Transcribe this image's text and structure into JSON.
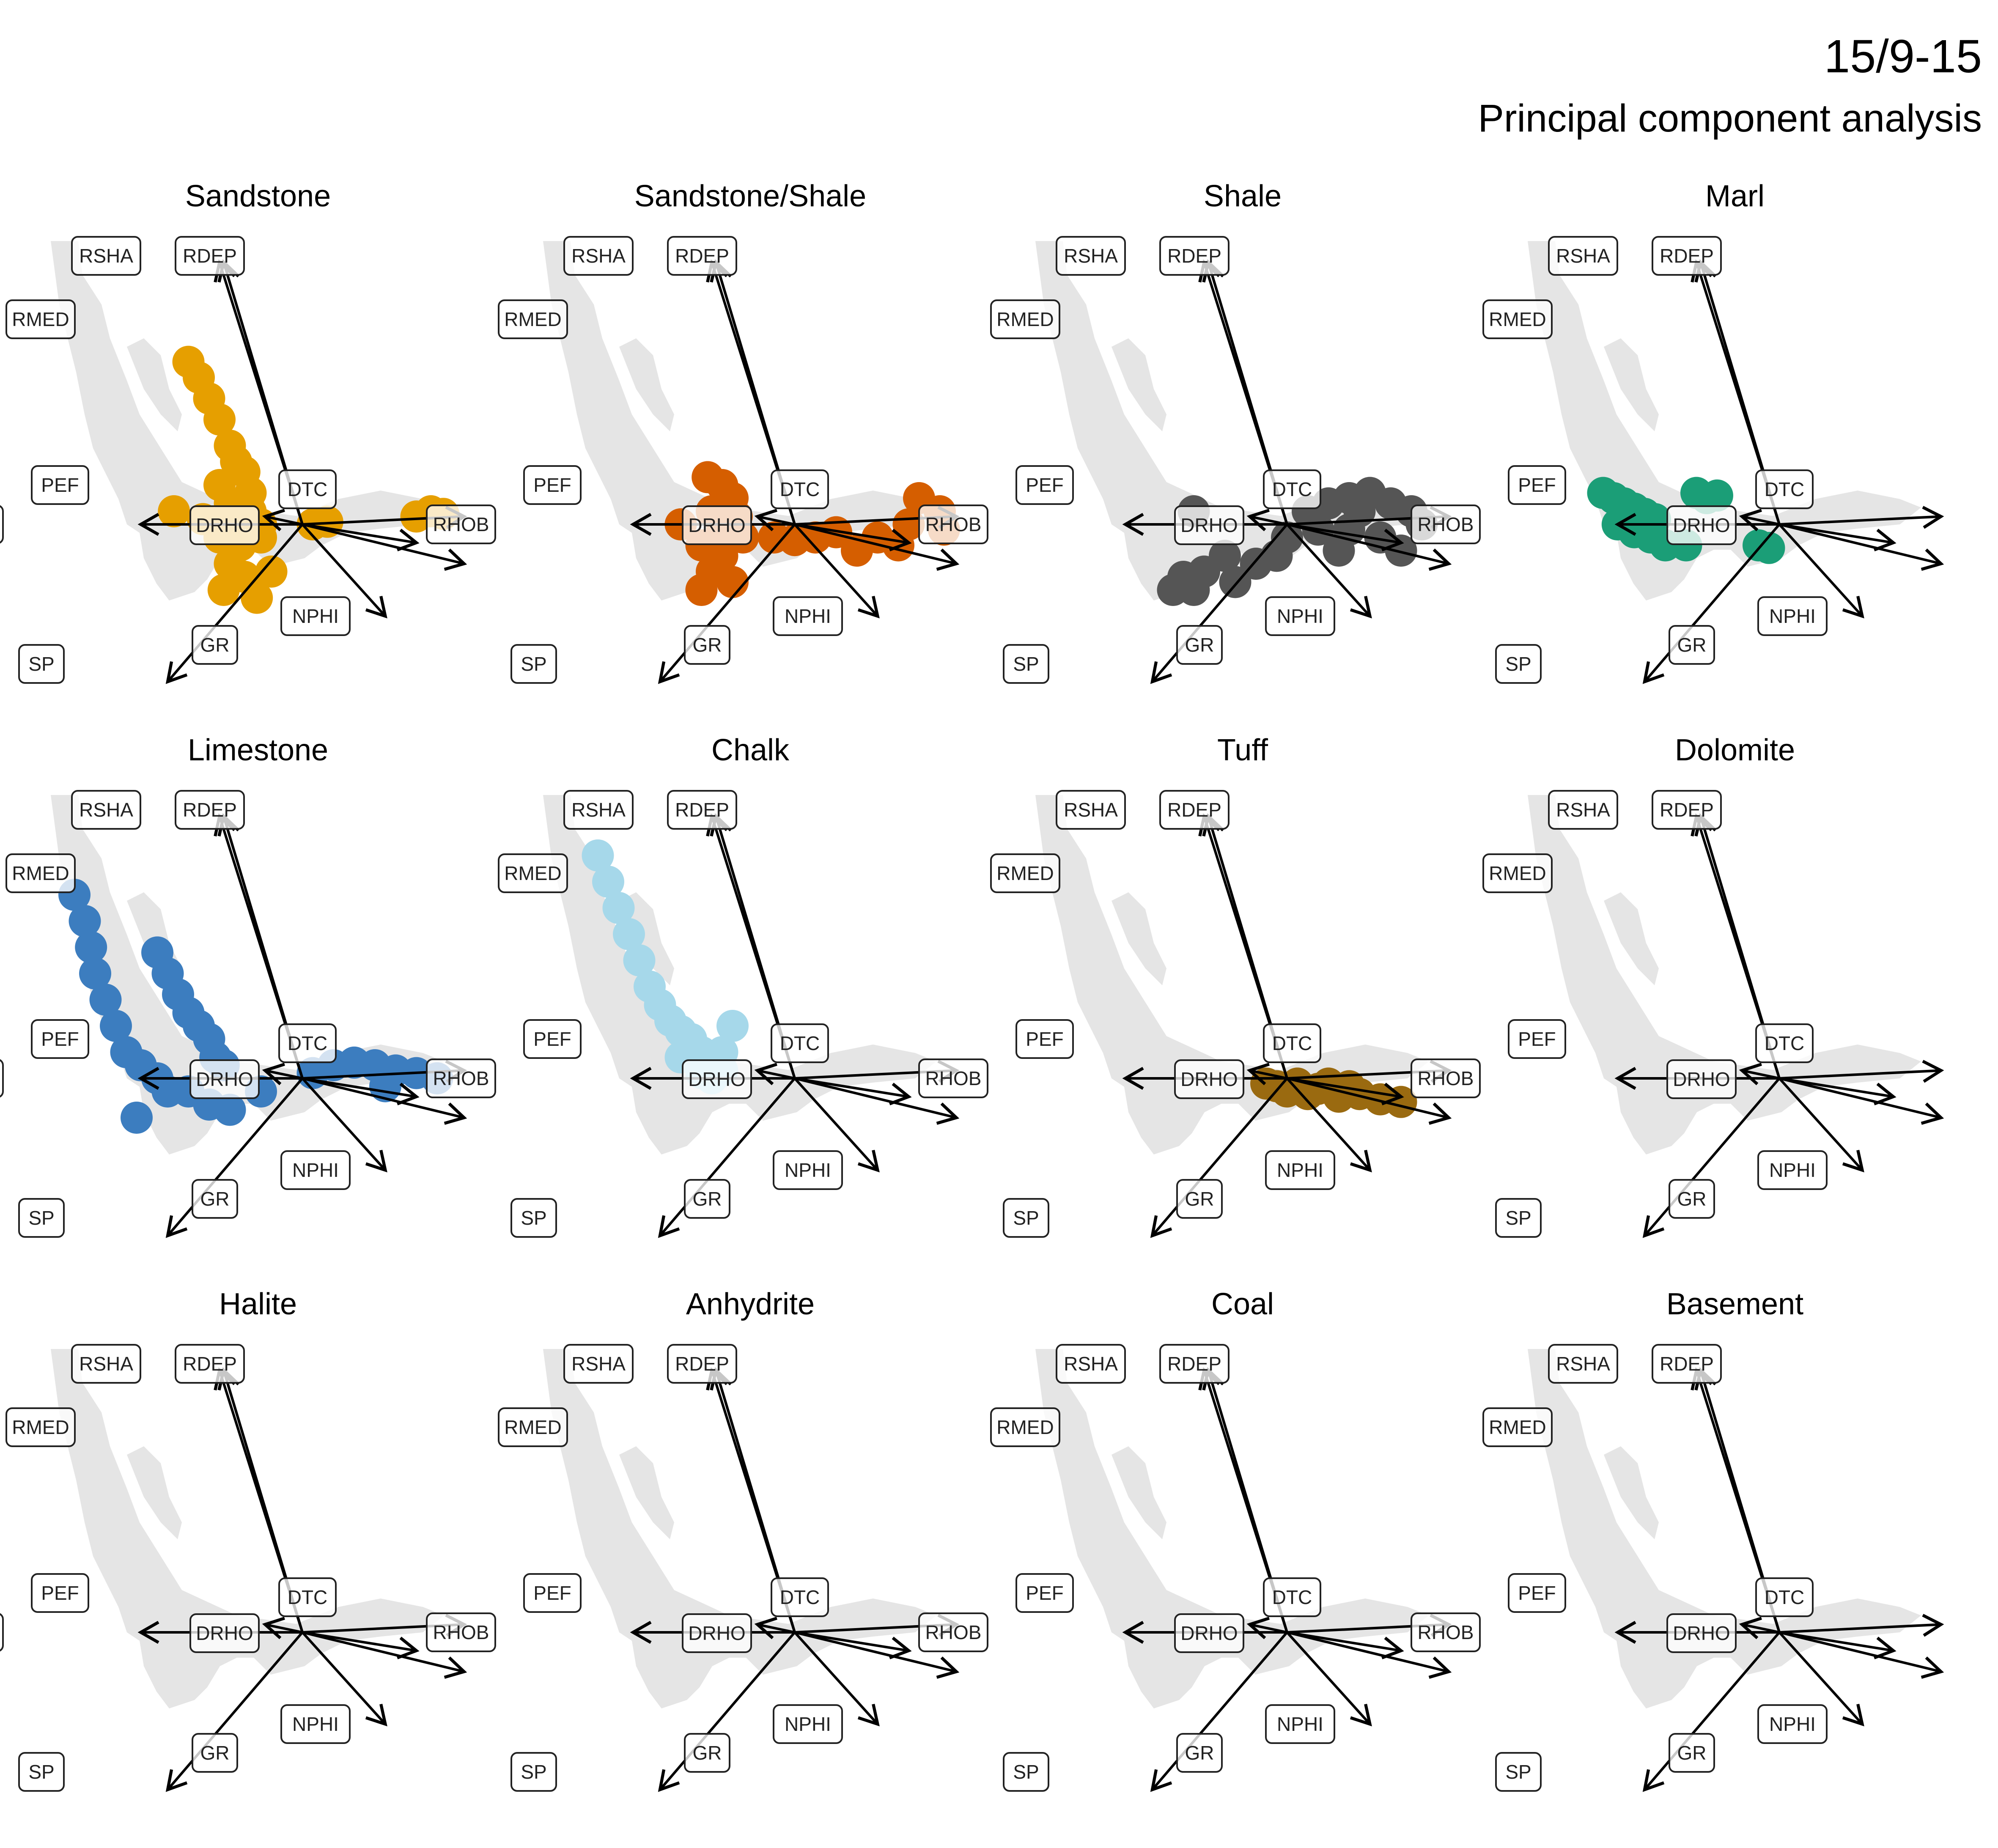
{
  "well": "15/9-15",
  "title": "Principal component analysis",
  "colors": {
    "background_density": "#e5e5e5",
    "arrow": "#000000",
    "label_fill": "#ffffff"
  },
  "chart_data": {
    "type": "scatter",
    "panel_order": [
      "Sandstone",
      "Sandstone/Shale",
      "Shale",
      "Marl",
      "Limestone",
      "Chalk",
      "Tuff",
      "Dolomite",
      "Halite",
      "Anhydrite",
      "Coal",
      "Basement"
    ],
    "loading_labels": [
      "RSHA",
      "RDEP",
      "RMED",
      "PEF",
      "DTC",
      "RHOB",
      "DRHO",
      "NPHI",
      "GR",
      "SP"
    ],
    "loadings": [
      {
        "name": "RSHA",
        "x": -0.38,
        "y": 1.0
      },
      {
        "name": "RDEP",
        "x": -0.4,
        "y": 1.0
      },
      {
        "name": "RMED",
        "x": -0.38,
        "y": 1.0
      },
      {
        "name": "PEF",
        "x": -0.18,
        "y": 0.03
      },
      {
        "name": "DTC",
        "x": 0.78,
        "y": 0.03
      },
      {
        "name": "RHOB",
        "x": -0.78,
        "y": 0.0
      },
      {
        "name": "DRHO",
        "x": 0.55,
        "y": -0.07
      },
      {
        "name": "NPHI",
        "x": 0.78,
        "y": -0.15
      },
      {
        "name": "GR",
        "x": 0.4,
        "y": -0.35
      },
      {
        "name": "SP",
        "x": -0.65,
        "y": -0.6
      }
    ],
    "panels": [
      {
        "lithology": "Sandstone",
        "color": "#E69F00",
        "points": [
          [
            -0.55,
            0.62
          ],
          [
            -0.5,
            0.56
          ],
          [
            -0.45,
            0.48
          ],
          [
            -0.4,
            0.4
          ],
          [
            -0.35,
            0.3
          ],
          [
            -0.32,
            0.24
          ],
          [
            -0.28,
            0.2
          ],
          [
            -0.4,
            0.15
          ],
          [
            -0.25,
            0.12
          ],
          [
            -0.35,
            0.08
          ],
          [
            -0.25,
            0.05
          ],
          [
            -0.48,
            0.02
          ],
          [
            -0.35,
            0.0
          ],
          [
            -0.2,
            0.0
          ],
          [
            -0.4,
            -0.05
          ],
          [
            -0.3,
            -0.08
          ],
          [
            -0.2,
            -0.05
          ],
          [
            -0.35,
            -0.15
          ],
          [
            -0.28,
            -0.2
          ],
          [
            -0.38,
            -0.25
          ],
          [
            -0.22,
            -0.28
          ],
          [
            -0.15,
            -0.18
          ],
          [
            0.05,
            0.0
          ],
          [
            0.12,
            0.01
          ],
          [
            0.55,
            0.03
          ],
          [
            0.62,
            0.05
          ],
          [
            0.68,
            0.04
          ],
          [
            -0.62,
            0.05
          ]
        ]
      },
      {
        "lithology": "Sandstone/Shale",
        "color": "#D55E00",
        "points": [
          [
            -0.42,
            0.18
          ],
          [
            -0.35,
            0.15
          ],
          [
            -0.3,
            0.1
          ],
          [
            -0.4,
            0.05
          ],
          [
            -0.28,
            0.03
          ],
          [
            -0.55,
            0.0
          ],
          [
            -0.35,
            -0.02
          ],
          [
            -0.25,
            -0.05
          ],
          [
            -0.45,
            -0.08
          ],
          [
            -0.35,
            -0.12
          ],
          [
            -0.4,
            -0.18
          ],
          [
            -0.3,
            -0.22
          ],
          [
            -0.45,
            -0.25
          ],
          [
            -0.1,
            -0.05
          ],
          [
            0.0,
            -0.06
          ],
          [
            0.1,
            -0.05
          ],
          [
            0.2,
            -0.03
          ],
          [
            0.4,
            -0.05
          ],
          [
            0.5,
            -0.08
          ],
          [
            0.6,
            0.1
          ],
          [
            0.7,
            0.05
          ],
          [
            0.72,
            -0.02
          ],
          [
            0.55,
            0.0
          ],
          [
            0.3,
            -0.1
          ]
        ]
      },
      {
        "lithology": "Shale",
        "color": "#555555",
        "points": [
          [
            0.1,
            0.05
          ],
          [
            0.2,
            0.08
          ],
          [
            0.3,
            0.1
          ],
          [
            0.4,
            0.12
          ],
          [
            0.5,
            0.08
          ],
          [
            0.6,
            0.05
          ],
          [
            0.15,
            -0.02
          ],
          [
            0.3,
            -0.02
          ],
          [
            0.45,
            -0.05
          ],
          [
            0.55,
            -0.1
          ],
          [
            0.25,
            -0.1
          ],
          [
            0.0,
            -0.05
          ],
          [
            -0.05,
            -0.12
          ],
          [
            -0.15,
            -0.15
          ],
          [
            -0.3,
            -0.12
          ],
          [
            -0.4,
            -0.18
          ],
          [
            -0.25,
            -0.22
          ],
          [
            -0.5,
            -0.2
          ],
          [
            -0.55,
            -0.25
          ],
          [
            -0.45,
            -0.25
          ],
          [
            -0.45,
            0.05
          ],
          [
            0.65,
            0.0
          ],
          [
            0.35,
            0.05
          ]
        ]
      },
      {
        "lithology": "Marl",
        "color": "#1B9E77",
        "points": [
          [
            -0.85,
            0.12
          ],
          [
            -0.8,
            0.1
          ],
          [
            -0.75,
            0.08
          ],
          [
            -0.7,
            0.06
          ],
          [
            -0.65,
            0.04
          ],
          [
            -0.6,
            0.02
          ],
          [
            -0.78,
            0.0
          ],
          [
            -0.7,
            -0.03
          ],
          [
            -0.62,
            -0.05
          ],
          [
            -0.55,
            -0.08
          ],
          [
            -0.45,
            -0.08
          ],
          [
            -0.4,
            0.12
          ],
          [
            -0.35,
            0.1
          ],
          [
            -0.3,
            0.11
          ],
          [
            -0.1,
            -0.08
          ],
          [
            -0.05,
            -0.09
          ]
        ]
      },
      {
        "lithology": "Limestone",
        "color": "#3C7DBF",
        "points": [
          [
            -1.1,
            0.7
          ],
          [
            -1.05,
            0.6
          ],
          [
            -1.02,
            0.5
          ],
          [
            -1.0,
            0.4
          ],
          [
            -0.95,
            0.3
          ],
          [
            -0.9,
            0.2
          ],
          [
            -0.85,
            0.1
          ],
          [
            -0.78,
            0.05
          ],
          [
            -0.7,
            0.0
          ],
          [
            -0.65,
            -0.05
          ],
          [
            -0.55,
            -0.05
          ],
          [
            -0.45,
            -0.1
          ],
          [
            -0.7,
            0.48
          ],
          [
            -0.65,
            0.4
          ],
          [
            -0.6,
            0.32
          ],
          [
            -0.55,
            0.25
          ],
          [
            -0.5,
            0.2
          ],
          [
            -0.45,
            0.15
          ],
          [
            -0.42,
            0.08
          ],
          [
            -0.38,
            0.05
          ],
          [
            -0.35,
            -0.12
          ],
          [
            -0.2,
            -0.05
          ],
          [
            0.05,
            0.02
          ],
          [
            0.15,
            0.05
          ],
          [
            0.25,
            0.06
          ],
          [
            0.35,
            0.05
          ],
          [
            0.45,
            0.03
          ],
          [
            0.55,
            0.02
          ],
          [
            0.65,
            0.0
          ],
          [
            0.4,
            -0.03
          ],
          [
            -0.8,
            -0.15
          ]
        ]
      },
      {
        "lithology": "Chalk",
        "color": "#A6D8EA",
        "points": [
          [
            -0.95,
            0.85
          ],
          [
            -0.9,
            0.75
          ],
          [
            -0.85,
            0.65
          ],
          [
            -0.8,
            0.55
          ],
          [
            -0.75,
            0.45
          ],
          [
            -0.7,
            0.35
          ],
          [
            -0.65,
            0.28
          ],
          [
            -0.6,
            0.22
          ],
          [
            -0.55,
            0.18
          ],
          [
            -0.5,
            0.15
          ],
          [
            -0.45,
            0.1
          ],
          [
            -0.4,
            0.06
          ],
          [
            -0.35,
            0.1
          ],
          [
            -0.3,
            0.2
          ],
          [
            -0.45,
            0.02
          ],
          [
            -0.4,
            0.0
          ],
          [
            -0.55,
            0.08
          ],
          [
            -0.35,
            0.03
          ]
        ]
      },
      {
        "lithology": "Tuff",
        "color": "#9A6A10",
        "points": [
          [
            -0.05,
            -0.03
          ],
          [
            0.0,
            -0.05
          ],
          [
            0.05,
            -0.02
          ],
          [
            0.1,
            -0.06
          ],
          [
            0.15,
            -0.04
          ],
          [
            0.25,
            -0.07
          ],
          [
            0.35,
            -0.06
          ],
          [
            0.45,
            -0.08
          ],
          [
            0.55,
            -0.09
          ],
          [
            0.3,
            -0.03
          ],
          [
            -0.1,
            -0.02
          ],
          [
            0.2,
            -0.02
          ]
        ]
      },
      {
        "lithology": "Dolomite",
        "color": "#009E73",
        "points": []
      },
      {
        "lithology": "Halite",
        "color": "#CC79A7",
        "points": []
      },
      {
        "lithology": "Anhydrite",
        "color": "#F0E442",
        "points": []
      },
      {
        "lithology": "Coal",
        "color": "#000000",
        "points": []
      },
      {
        "lithology": "Basement",
        "color": "#56B4E9",
        "points": []
      }
    ]
  }
}
